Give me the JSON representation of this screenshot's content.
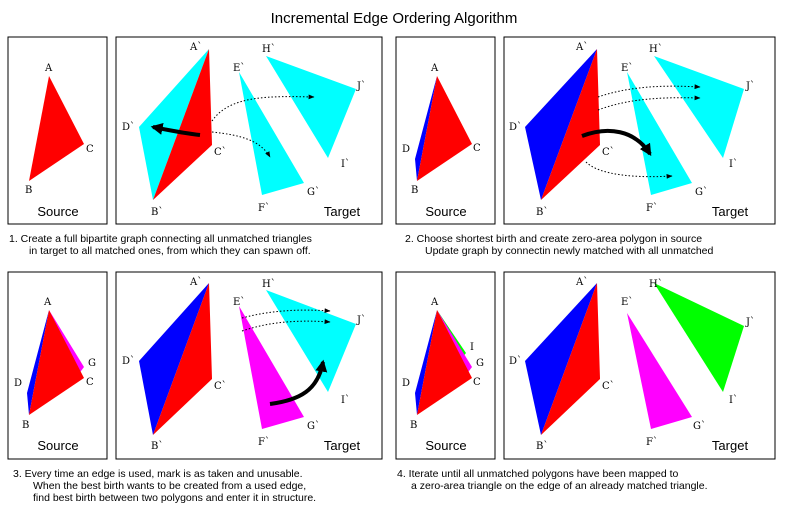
{
  "title": "Incremental Edge Ordering Algorithm",
  "colors": {
    "red": "#ff0000",
    "blue": "#0000ff",
    "cyan": "#00ffff",
    "magenta": "#ff00ff",
    "green": "#00ff00"
  },
  "panel_titles": {
    "source": "Source",
    "target": "Target"
  },
  "vertex_labels": {
    "A": "A",
    "B": "B",
    "C": "C",
    "D": "D",
    "G": "G",
    "I": "I",
    "A_prime": "A`",
    "B_prime": "B`",
    "C_prime": "C`",
    "D_prime": "D`",
    "E_prime": "E`",
    "F_prime": "F`",
    "G_prime": "G`",
    "H_prime": "H`",
    "I_prime": "I`",
    "J_prime": "J`"
  },
  "steps": [
    {
      "caption_line1": "1. Create a full bipartite graph connecting all unmatched triangles",
      "caption_line2": "in target to all matched ones, from which they can spawn off."
    },
    {
      "caption_line1": "2. Choose shortest birth and create zero-area  polygon in source",
      "caption_line2": "Update graph by connectin newly matched with all unmatched"
    },
    {
      "caption_line1": "3. Every time an edge is used, mark is as taken and unusable.",
      "caption_line2": "When the best birth wants to be created from a used edge,",
      "caption_line3": "find best birth between two polygons and enter it in structure."
    },
    {
      "caption_line1": "4. Iterate until all unmatched polygons have been mapped to",
      "caption_line2": "a zero-area triangle on the edge of an already matched triangle."
    }
  ]
}
